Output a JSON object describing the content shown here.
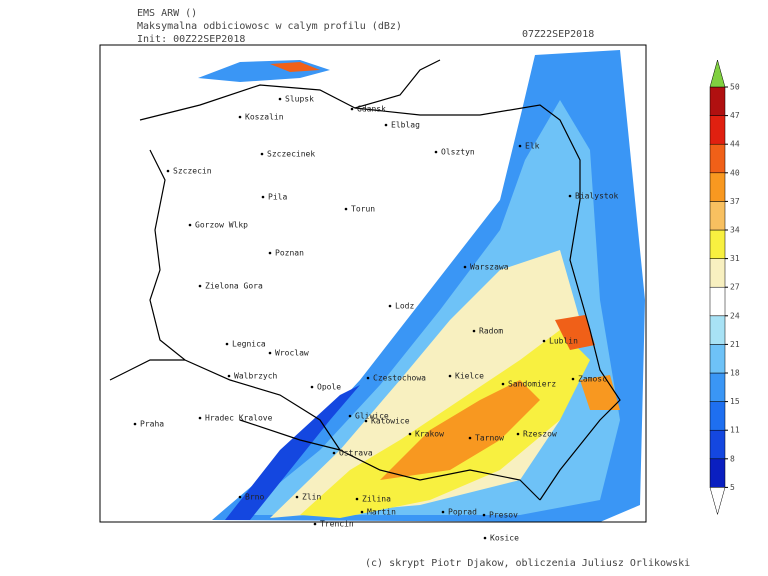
{
  "header": {
    "model": "EMS ARW ()",
    "field": "Maksymalna odbiciowosc w calym profilu (dBz)",
    "init": "Init: 00Z22SEP2018",
    "valid": "07Z22SEP2018"
  },
  "cities": [
    "Slupsk",
    "Koszalin",
    "Gdansk",
    "Elblag",
    "Szczecin",
    "Szczecinek",
    "Olsztyn",
    "Elk",
    "Pila",
    "Torun",
    "Bialystok",
    "Gorzow Wlkp",
    "Poznan",
    "Warszawa",
    "Zielona Gora",
    "Lodz",
    "Radom",
    "Lublin",
    "Legnica",
    "Wroclaw",
    "Walbrzych",
    "Opole",
    "Czestochowa",
    "Kielce",
    "Sandomierz",
    "Zamosc",
    "Hradec Kralove",
    "Gliwice",
    "Katowice",
    "Praha",
    "Krakow",
    "Tarnow",
    "Rzeszow",
    "Ostrava",
    "Brno",
    "Zlin",
    "Zilina",
    "Martin",
    "Poprad",
    "Presov",
    "Trencin",
    "Kosice"
  ],
  "colorbar": {
    "levels": [
      5,
      8,
      11,
      15,
      18,
      21,
      24,
      27,
      31,
      34,
      37,
      40,
      44,
      47,
      50
    ],
    "colors": [
      "#0a1fc0",
      "#1447e0",
      "#1e6ff0",
      "#3a96f5",
      "#6ec2f7",
      "#a8e2f5",
      "#ffffff",
      "#f8f0c0",
      "#f8f040",
      "#f8c060",
      "#f89820",
      "#f06018",
      "#e02010",
      "#b01010"
    ],
    "under_color": "#ffffff",
    "over_color": "#80d040"
  },
  "footer": "(c) skrypt Piotr Djakow, obliczenia Juliusz Orlikowski"
}
